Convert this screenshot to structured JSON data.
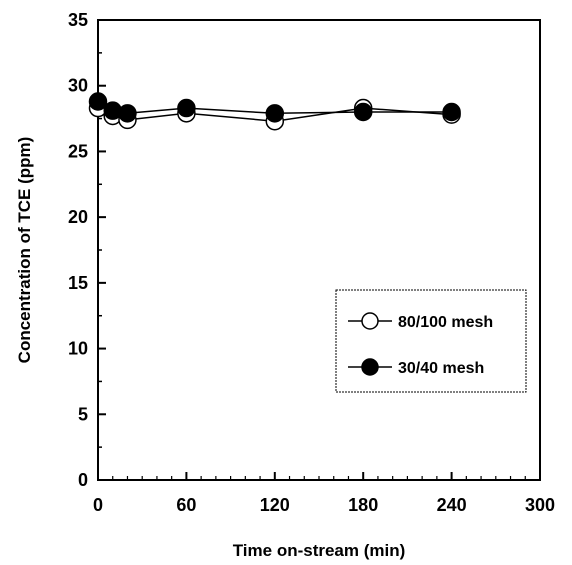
{
  "chart_data": {
    "type": "line",
    "title": "",
    "xlabel": "Time on-stream (min)",
    "ylabel": "Concentration of TCE (ppm)",
    "xlim": [
      0,
      300
    ],
    "ylim": [
      0,
      35
    ],
    "xticks": [
      "0",
      "60",
      "120",
      "180",
      "240",
      "300"
    ],
    "yticks": [
      "0",
      "5",
      "10",
      "15",
      "20",
      "25",
      "30",
      "35"
    ],
    "grid": false,
    "legend_position": "center-right",
    "series": [
      {
        "name": "80/100 mesh",
        "marker": "open-circle",
        "x": [
          0,
          10,
          20,
          60,
          120,
          180,
          240
        ],
        "y": [
          28.3,
          27.7,
          27.4,
          27.9,
          27.3,
          28.3,
          27.8
        ]
      },
      {
        "name": "30/40 mesh",
        "marker": "filled-circle",
        "x": [
          0,
          10,
          20,
          60,
          120,
          180,
          240
        ],
        "y": [
          28.8,
          28.1,
          27.9,
          28.3,
          27.9,
          28.0,
          28.0
        ]
      }
    ]
  }
}
